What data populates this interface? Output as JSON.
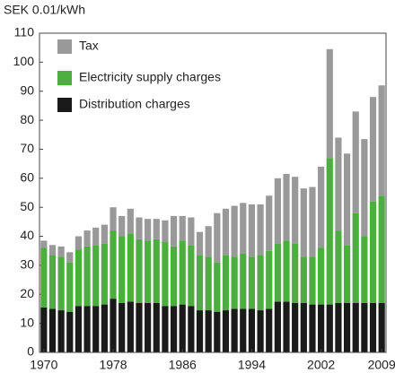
{
  "chart_data": {
    "type": "bar",
    "stacked": true,
    "y_label": "SEK 0.01/kWh",
    "categories": [
      "1970",
      null,
      null,
      null,
      null,
      null,
      null,
      null,
      "1978",
      null,
      null,
      null,
      null,
      null,
      null,
      null,
      "1986",
      null,
      null,
      null,
      null,
      null,
      null,
      null,
      "1994",
      null,
      null,
      null,
      null,
      null,
      null,
      null,
      "2002",
      null,
      null,
      null,
      null,
      null,
      null,
      "2009"
    ],
    "series": [
      {
        "name": "Distribution charges",
        "color": "#1a1a1a",
        "values": [
          15.5,
          15,
          14.5,
          14,
          16,
          16,
          16,
          16.5,
          18.5,
          17,
          17.5,
          17,
          17,
          17,
          16,
          16,
          16.5,
          16,
          14.5,
          14.5,
          14,
          14.5,
          15,
          15,
          15,
          14.5,
          15,
          17.5,
          17.5,
          17,
          17,
          16.5,
          16.5,
          16.5,
          17,
          17,
          17,
          17,
          17,
          17
        ]
      },
      {
        "name": "Electricity supply charges",
        "color": "#4cae3f",
        "values": [
          20.5,
          18.5,
          18.5,
          17,
          19.5,
          20.5,
          21,
          21,
          23.5,
          23,
          23.5,
          22,
          21.5,
          22,
          22,
          20.5,
          22,
          21,
          19,
          18.5,
          17,
          19,
          18,
          19,
          18,
          19,
          20,
          20,
          21,
          20.5,
          16,
          16.5,
          19.5,
          50.5,
          25,
          20,
          31,
          23,
          35,
          37
        ]
      },
      {
        "name": "Tax",
        "color": "#999999",
        "values": [
          2.5,
          3.5,
          3.5,
          3.5,
          4.5,
          5.5,
          6,
          6.5,
          8,
          7,
          8.5,
          7.5,
          7.5,
          7,
          7.5,
          10.5,
          8.5,
          9.5,
          8,
          10.5,
          17,
          16,
          17.5,
          17.5,
          18,
          17.5,
          19,
          22.5,
          23,
          23,
          23.5,
          24,
          28,
          37.5,
          32,
          31.5,
          35,
          33.5,
          36,
          38
        ]
      }
    ],
    "ylim": [
      0,
      110
    ],
    "yticks": [
      0,
      10,
      20,
      30,
      40,
      50,
      60,
      70,
      80,
      90,
      100,
      110
    ],
    "legend": "upper left",
    "grid": false
  }
}
